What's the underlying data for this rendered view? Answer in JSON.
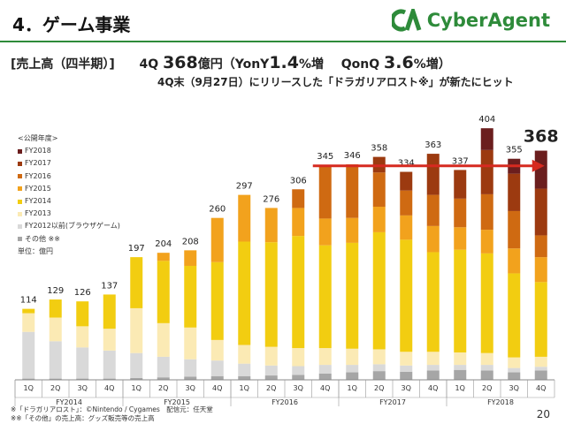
{
  "header": {
    "title": "4．ゲーム事業",
    "brand": "CyberAgent",
    "brand_color": "#2e8b3a"
  },
  "subtitle": {
    "bracket": "[売上高（四半期）]",
    "q4_prefix": "4Q ",
    "q4_value": "368",
    "q4_unit": "億円（YonY",
    "yoy_value": "1.4",
    "yoy_unit": "%増",
    "qonq_label": "QonQ ",
    "qonq_value": "3.6",
    "qonq_unit": "%増）",
    "line2": "4Q末（9月27日）にリリースした「ドラガリアロスト※」が新たにヒット"
  },
  "legend": {
    "title": "<公開年度>",
    "unit": "単位：億円",
    "items": [
      {
        "label": "FY2018",
        "color": "#6b1e1e"
      },
      {
        "label": "FY2017",
        "color": "#9c3a10"
      },
      {
        "label": "FY2016",
        "color": "#cf6a12"
      },
      {
        "label": "FY2015",
        "color": "#f2a21d"
      },
      {
        "label": "FY2014",
        "color": "#f2cd11"
      },
      {
        "label": "FY2013",
        "color": "#fbeab4"
      },
      {
        "label": "FY2012以前(ブラウザゲーム)",
        "color": "#d9d9d9"
      },
      {
        "label": "その他 ※※",
        "color": "#a6a6a6"
      }
    ]
  },
  "chart_data": {
    "type": "bar",
    "stacked": true,
    "quarters": [
      "1Q",
      "2Q",
      "3Q",
      "4Q",
      "1Q",
      "2Q",
      "3Q",
      "4Q",
      "1Q",
      "2Q",
      "3Q",
      "4Q",
      "1Q",
      "2Q",
      "3Q",
      "4Q",
      "1Q",
      "2Q",
      "3Q",
      "4Q"
    ],
    "fiscal_years": [
      "FY2014",
      "FY2015",
      "FY2016",
      "FY2017",
      "FY2018"
    ],
    "totals": [
      114,
      129,
      126,
      137,
      197,
      204,
      208,
      260,
      297,
      276,
      306,
      345,
      346,
      358,
      334,
      363,
      337,
      404,
      355,
      368
    ],
    "series": [
      {
        "name": "その他 ※※",
        "values": [
          2,
          2,
          2,
          2,
          3,
          4,
          5,
          6,
          6,
          7,
          8,
          10,
          12,
          14,
          13,
          15,
          16,
          15,
          12,
          15
        ]
      },
      {
        "name": "FY2012以前(ブラウザゲーム)",
        "values": [
          75,
          60,
          50,
          45,
          40,
          33,
          28,
          25,
          20,
          16,
          14,
          14,
          12,
          11,
          10,
          9,
          8,
          9,
          7,
          6
        ]
      },
      {
        "name": "FY2013",
        "values": [
          30,
          38,
          34,
          35,
          72,
          54,
          51,
          33,
          30,
          30,
          29,
          27,
          26,
          24,
          22,
          21,
          20,
          19,
          17,
          16
        ]
      },
      {
        "name": "FY2014",
        "values": [
          7,
          29,
          40,
          55,
          82,
          100,
          99,
          125,
          166,
          168,
          180,
          165,
          170,
          188,
          180,
          160,
          165,
          160,
          135,
          120
        ]
      },
      {
        "name": "FY2015",
        "values": [
          0,
          0,
          0,
          0,
          0,
          13,
          25,
          71,
          75,
          55,
          45,
          43,
          40,
          41,
          39,
          42,
          36,
          38,
          40,
          40
        ]
      },
      {
        "name": "FY2016",
        "values": [
          0,
          0,
          0,
          0,
          0,
          0,
          0,
          0,
          0,
          0,
          30,
          86,
          86,
          55,
          40,
          50,
          46,
          57,
          60,
          35
        ]
      },
      {
        "name": "FY2017",
        "values": [
          0,
          0,
          0,
          0,
          0,
          0,
          0,
          0,
          0,
          0,
          0,
          0,
          0,
          25,
          30,
          66,
          46,
          71,
          60,
          75
        ]
      },
      {
        "name": "FY2018",
        "values": [
          0,
          0,
          0,
          0,
          0,
          0,
          0,
          0,
          0,
          0,
          0,
          0,
          0,
          0,
          0,
          0,
          0,
          35,
          24,
          61
        ]
      }
    ],
    "ylim": [
      0,
      420
    ],
    "highlight_value": "368",
    "trend_arrow": {
      "from_bar": 11,
      "to_bar": 19,
      "value": 345,
      "color": "#d62a20"
    }
  },
  "footnotes": [
    "※「ドラガリアロスト」：©Nintendo / Cygames　配信元：任天堂",
    "※※「その他」の売上高：グッズ販売等の売上高"
  ],
  "page_number": "20"
}
